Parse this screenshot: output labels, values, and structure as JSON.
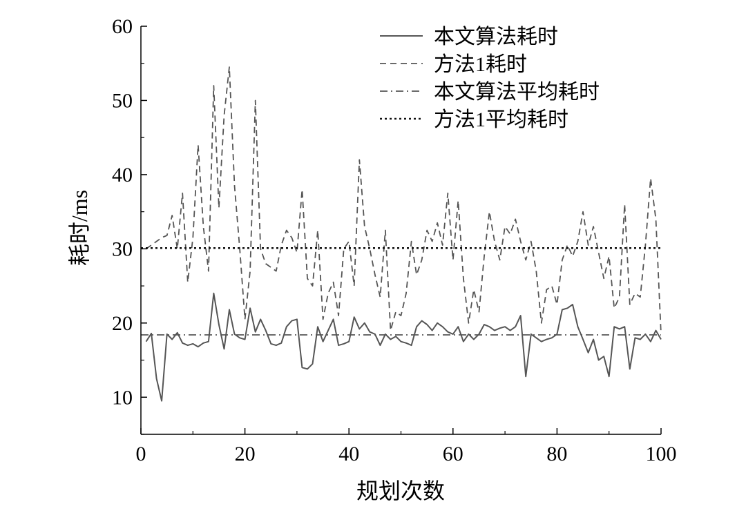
{
  "chart_data": {
    "type": "line",
    "xlabel": "规划次数",
    "ylabel": "耗时/ms",
    "xlim": [
      0,
      100
    ],
    "ylim": [
      5,
      60
    ],
    "x_ticks": [
      0,
      20,
      40,
      60,
      80,
      100
    ],
    "y_ticks": [
      10,
      20,
      30,
      40,
      50,
      60
    ],
    "legend_position": "top-right",
    "series": [
      {
        "name": "本文算法耗时",
        "style": "solid",
        "color": "#555555",
        "x": [
          1,
          2,
          3,
          4,
          5,
          6,
          7,
          8,
          9,
          10,
          11,
          12,
          13,
          14,
          15,
          16,
          17,
          18,
          19,
          20,
          21,
          22,
          23,
          24,
          25,
          26,
          27,
          28,
          29,
          30,
          31,
          32,
          33,
          34,
          35,
          36,
          37,
          38,
          39,
          40,
          41,
          42,
          43,
          44,
          45,
          46,
          47,
          48,
          49,
          50,
          51,
          52,
          53,
          54,
          55,
          56,
          57,
          58,
          59,
          60,
          61,
          62,
          63,
          64,
          65,
          66,
          67,
          68,
          69,
          70,
          71,
          72,
          73,
          74,
          75,
          76,
          77,
          78,
          79,
          80,
          81,
          82,
          83,
          84,
          85,
          86,
          87,
          88,
          89,
          90,
          91,
          92,
          93,
          94,
          95,
          96,
          97,
          98,
          99,
          100
        ],
        "values": [
          17.5,
          18.6,
          12.5,
          9.5,
          18.5,
          17.8,
          18.7,
          17.3,
          17.0,
          17.2,
          16.8,
          17.3,
          17.5,
          24.0,
          19.8,
          16.5,
          21.8,
          18.5,
          18.0,
          17.8,
          22.0,
          18.8,
          20.5,
          19.0,
          17.2,
          17.0,
          17.3,
          19.5,
          20.3,
          20.5,
          14.0,
          13.8,
          14.5,
          19.5,
          17.5,
          19.0,
          20.5,
          17.0,
          17.2,
          17.5,
          20.8,
          19.2,
          20.0,
          18.8,
          18.5,
          17.0,
          18.5,
          17.8,
          18.2,
          17.5,
          17.3,
          17.0,
          19.5,
          20.3,
          19.8,
          19.0,
          20.0,
          19.5,
          18.8,
          18.5,
          19.5,
          17.5,
          18.5,
          17.8,
          18.5,
          19.8,
          19.5,
          19.0,
          19.3,
          19.5,
          19.0,
          19.5,
          21.0,
          12.8,
          18.5,
          18.0,
          17.5,
          17.8,
          18.0,
          18.5,
          21.8,
          22.0,
          22.5,
          19.5,
          17.8,
          16.0,
          17.8,
          15.0,
          15.5,
          12.8,
          19.5,
          19.2,
          19.5,
          13.8,
          18.0,
          17.8,
          18.5,
          17.5,
          19.0,
          17.8
        ]
      },
      {
        "name": "方法1耗时",
        "style": "dashed",
        "color": "#555555",
        "x": [
          1,
          2,
          3,
          4,
          5,
          6,
          7,
          8,
          9,
          10,
          11,
          12,
          13,
          14,
          15,
          16,
          17,
          18,
          19,
          20,
          21,
          22,
          23,
          24,
          25,
          26,
          27,
          28,
          29,
          30,
          31,
          32,
          33,
          34,
          35,
          36,
          37,
          38,
          39,
          40,
          41,
          42,
          43,
          44,
          45,
          46,
          47,
          48,
          49,
          50,
          51,
          52,
          53,
          54,
          55,
          56,
          57,
          58,
          59,
          60,
          61,
          62,
          63,
          64,
          65,
          66,
          67,
          68,
          69,
          70,
          71,
          72,
          73,
          74,
          75,
          76,
          77,
          78,
          79,
          80,
          81,
          82,
          83,
          84,
          85,
          86,
          87,
          88,
          89,
          90,
          91,
          92,
          93,
          94,
          95,
          96,
          97,
          98,
          99,
          100
        ],
        "values": [
          30.0,
          30.5,
          31.0,
          31.5,
          31.8,
          34.5,
          30.0,
          37.5,
          25.5,
          31.5,
          44.0,
          33.0,
          27.0,
          52.0,
          35.5,
          48.0,
          54.5,
          38.5,
          30.0,
          20.5,
          27.0,
          50.0,
          30.0,
          28.0,
          27.5,
          27.0,
          30.5,
          32.5,
          31.5,
          29.5,
          38.0,
          26.0,
          25.0,
          32.5,
          20.5,
          24.0,
          25.5,
          21.0,
          30.0,
          31.0,
          25.0,
          42.0,
          33.0,
          30.0,
          26.5,
          23.5,
          32.5,
          19.0,
          21.5,
          21.0,
          24.0,
          31.0,
          26.5,
          28.5,
          32.5,
          31.0,
          33.5,
          30.5,
          37.5,
          28.5,
          36.5,
          26.0,
          20.0,
          24.5,
          21.5,
          29.0,
          35.0,
          31.0,
          28.5,
          33.0,
          32.0,
          34.0,
          31.0,
          28.5,
          31.0,
          27.0,
          20.0,
          24.5,
          25.0,
          22.5,
          28.5,
          30.5,
          29.0,
          31.0,
          35.0,
          30.5,
          33.0,
          29.5,
          26.0,
          29.0,
          22.0,
          23.5,
          36.0,
          22.5,
          24.0,
          23.5,
          30.5,
          39.5,
          34.0,
          18.5
        ]
      },
      {
        "name": "本文算法平均耗时",
        "style": "dashdot",
        "color": "#555555",
        "x": [
          0,
          100
        ],
        "values": [
          18.4,
          18.4
        ]
      },
      {
        "name": "方法1平均耗时",
        "style": "dotted",
        "color": "#111111",
        "x": [
          0,
          100
        ],
        "values": [
          30.1,
          30.1
        ]
      }
    ]
  }
}
